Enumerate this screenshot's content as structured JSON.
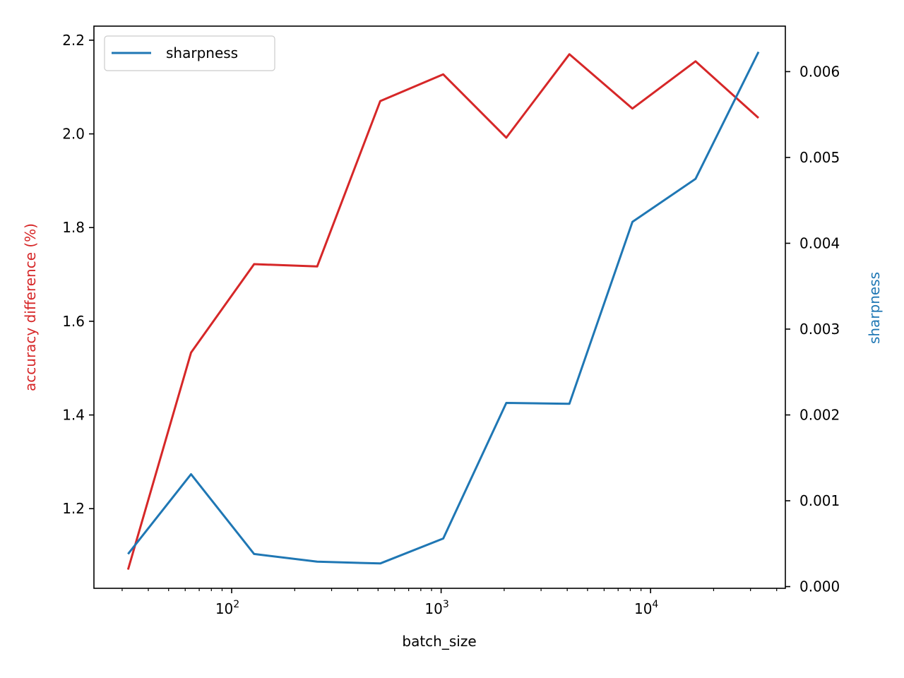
{
  "chart_data": {
    "type": "line",
    "x_scale": "log",
    "xlabel": "batch_size",
    "ylabel_left": "accuracy difference (%)",
    "ylabel_right": "sharpness",
    "xlim": [
      22,
      44000
    ],
    "ylim_left": [
      1.03,
      2.23
    ],
    "ylim_right": [
      -2e-05,
      0.00653
    ],
    "x": [
      32,
      64,
      128,
      256,
      512,
      1024,
      2048,
      4096,
      8192,
      16384,
      32768
    ],
    "x_ticks_major": [
      {
        "value": 100,
        "base": "10",
        "exp": "2"
      },
      {
        "value": 1000,
        "base": "10",
        "exp": "3"
      },
      {
        "value": 10000,
        "base": "10",
        "exp": "4"
      }
    ],
    "y_ticks_left": [
      "1.2",
      "1.4",
      "1.6",
      "1.8",
      "2.0",
      "2.2"
    ],
    "y_ticks_right": [
      "0.000",
      "0.001",
      "0.002",
      "0.003",
      "0.004",
      "0.005",
      "0.006"
    ],
    "grid": false,
    "legend_position": "top-left",
    "series": [
      {
        "key": "accuracy",
        "axis": "left",
        "color": "#d62728",
        "values": [
          1.07,
          1.533,
          1.722,
          1.717,
          2.07,
          2.127,
          1.992,
          2.17,
          2.054,
          2.155,
          2.034
        ]
      },
      {
        "key": "sharpness",
        "name": "sharpness",
        "axis": "right",
        "color": "#1f77b4",
        "values": [
          0.00038,
          0.00131,
          0.00038,
          0.00029,
          0.00027,
          0.00056,
          0.00214,
          0.00213,
          0.00425,
          0.00475,
          0.00623
        ]
      }
    ]
  }
}
